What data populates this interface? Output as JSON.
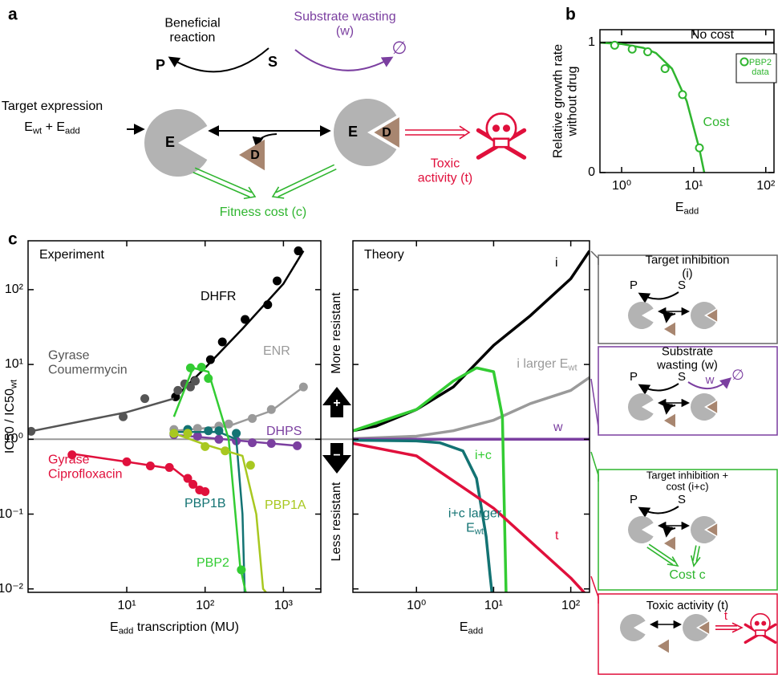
{
  "panel_labels": [
    "a",
    "b",
    "c"
  ],
  "diagram": {
    "beneficial_reaction": "Beneficial reaction",
    "product": "P",
    "substrate": "S",
    "substrate_wasting": "Substrate wasting (w)",
    "empty_set": "∅",
    "target_expression": "Target expression",
    "target_sum": [
      "E",
      "wt",
      " + E",
      "add"
    ],
    "enzyme_labels": [
      "E",
      "E"
    ],
    "drug_labels": [
      "D",
      "D"
    ],
    "toxic_activity": "Toxic activity (t)",
    "fitness_cost": "Fitness cost (c)"
  },
  "chart_data": [
    {
      "type": "line",
      "x_log": true,
      "xlim": [
        0.5,
        130
      ],
      "ylim": [
        0,
        1.1
      ],
      "xticks": [
        {
          "value": 1,
          "label": "10⁰"
        },
        {
          "value": 10,
          "label": "10¹"
        },
        {
          "value": 100,
          "label": "10²"
        }
      ],
      "yticks": [
        0,
        1
      ],
      "x_label": [
        "E",
        "add"
      ],
      "y_label": "Relative growth rate without drug",
      "legend": "upper right",
      "series": [
        {
          "name": "No cost",
          "color": "#000000",
          "x": [
            0.5,
            130
          ],
          "values": [
            1,
            1
          ]
        },
        {
          "name": "Cost",
          "color": "#2fb52f",
          "x": [
            0.5,
            1,
            2,
            3,
            5,
            8,
            12,
            14
          ],
          "values": [
            1,
            0.99,
            0.96,
            0.92,
            0.8,
            0.55,
            0.18,
            0
          ]
        },
        {
          "name": "PBP2 data",
          "color": "#2fb52f",
          "type": "scatter",
          "marker": "hollow",
          "x": [
            0.8,
            1.4,
            2.3,
            4,
            7,
            12
          ],
          "values": [
            0.98,
            0.95,
            0.93,
            0.8,
            0.6,
            0.19
          ]
        }
      ]
    },
    {
      "type": "scatter",
      "title": "Experiment",
      "x_log": true,
      "y_log": true,
      "xlim": [
        0.55,
        3000
      ],
      "ylim": [
        0.009,
        450
      ],
      "hline": 1,
      "xticks": [
        {
          "value": 10,
          "label": "10¹"
        },
        {
          "value": 100,
          "label": "10²"
        },
        {
          "value": 1000,
          "label": "10³"
        }
      ],
      "yticks": [
        {
          "value": 0.01,
          "label": "10⁻²"
        },
        {
          "value": 0.1,
          "label": "10⁻¹"
        },
        {
          "value": 1,
          "label": "10⁰"
        },
        {
          "value": 10,
          "label": "10¹"
        },
        {
          "value": 100,
          "label": "10²"
        }
      ],
      "x_label": [
        "E",
        "add",
        " transcription (MU)"
      ],
      "y_label": [
        "IC50 / IC50",
        "wt"
      ],
      "series": [
        {
          "name": "DHFR",
          "color": "#000000",
          "x": [
            42,
            74,
            117,
            166,
            324,
            630,
            830,
            1550
          ],
          "values": [
            3.7,
            6.1,
            11.6,
            20,
            40,
            63,
            131,
            330
          ],
          "fit_x": [
            40,
            100,
            300,
            1000,
            1800
          ],
          "fit_values": [
            3.5,
            9,
            30,
            120,
            330
          ]
        },
        {
          "name": "Gyrase Coumermycin",
          "color": "#555555",
          "x": [
            0.6,
            9,
            17,
            45,
            55,
            65,
            75
          ],
          "values": [
            1.28,
            2.0,
            3.5,
            4.5,
            5.5,
            5.0,
            6.0
          ],
          "fit_x": [
            0.6,
            10,
            40
          ],
          "fit_values": [
            1.28,
            2.3,
            3.5
          ]
        },
        {
          "name": "ENR",
          "color": "#9a9a9a",
          "x": [
            40,
            60,
            80,
            150,
            200,
            400,
            700,
            1800
          ],
          "values": [
            1.35,
            1.35,
            1.4,
            1.5,
            1.6,
            1.9,
            2.5,
            5
          ],
          "fit_x": [
            40,
            200,
            700,
            1800
          ],
          "fit_values": [
            1.3,
            1.5,
            2.4,
            5
          ]
        },
        {
          "name": "DHPS",
          "color": "#7b3fa0",
          "x": [
            40,
            80,
            150,
            250,
            400,
            700,
            1500
          ],
          "values": [
            1.15,
            1.1,
            1.0,
            0.95,
            0.9,
            0.88,
            0.82
          ],
          "fit_x": [
            40,
            300,
            1500
          ],
          "fit_values": [
            1.15,
            0.95,
            0.82
          ]
        },
        {
          "name": "Gyrase Ciprofloxacin",
          "color": "#e0103c",
          "x": [
            2,
            10,
            20,
            35,
            60,
            70,
            85,
            100
          ],
          "values": [
            0.62,
            0.5,
            0.44,
            0.42,
            0.3,
            0.25,
            0.21,
            0.2
          ],
          "fit_x": [
            2,
            10,
            40,
            100
          ],
          "fit_values": [
            0.64,
            0.5,
            0.4,
            0.19
          ]
        },
        {
          "name": "PBP1B",
          "color": "#137373",
          "x": [
            40,
            60,
            110,
            150,
            250
          ],
          "values": [
            1.2,
            1.35,
            1.3,
            1.3,
            1.2
          ],
          "fit_x": [
            40,
            150,
            250,
            300,
            320
          ],
          "fit_values": [
            1.25,
            1.25,
            1.0,
            0.1,
            0.009
          ]
        },
        {
          "name": "PBP2",
          "color": "#33cc33",
          "x": [
            65,
            90,
            110,
            290
          ],
          "values": [
            9,
            9.2,
            6.5,
            0.018
          ],
          "fit_x": [
            40,
            70,
            110,
            200,
            280,
            330
          ],
          "fit_values": [
            2,
            9,
            8,
            1,
            0.02,
            0.009
          ]
        },
        {
          "name": "PBP1A",
          "color": "#a8c820",
          "x": [
            40,
            60,
            100,
            180,
            380
          ],
          "values": [
            1.2,
            1.2,
            0.8,
            0.7,
            0.45
          ],
          "fit_x": [
            40,
            100,
            300,
            450,
            550,
            600
          ],
          "fit_values": [
            1.2,
            0.85,
            0.6,
            0.1,
            0.01,
            0.009
          ]
        }
      ]
    },
    {
      "type": "line",
      "title": "Theory",
      "x_log": true,
      "y_log": true,
      "xlim": [
        0.15,
        175
      ],
      "ylim": [
        0.009,
        450
      ],
      "xticks": [
        {
          "value": 1,
          "label": "10⁰"
        },
        {
          "value": 10,
          "label": "10¹"
        },
        {
          "value": 100,
          "label": "10²"
        }
      ],
      "yticks": [
        0.01,
        0.1,
        1,
        10,
        100
      ],
      "x_label": [
        "E",
        "add"
      ],
      "series": [
        {
          "name": "i",
          "color": "#000000",
          "x": [
            0.15,
            0.3,
            1,
            3,
            10,
            30,
            100,
            175
          ],
          "values": [
            1.3,
            1.5,
            2.5,
            5,
            18,
            45,
            140,
            330
          ]
        },
        {
          "name": [
            "i larger E",
            "wt"
          ],
          "color": "#9a9a9a",
          "x": [
            0.15,
            1,
            3,
            10,
            30,
            100,
            175
          ],
          "values": [
            1.02,
            1.1,
            1.3,
            1.8,
            3,
            4.5,
            6.7
          ]
        },
        {
          "name": "w",
          "color": "#7b3fa0",
          "x": [
            0.15,
            175
          ],
          "values": [
            1,
            1
          ]
        },
        {
          "name": "i+c",
          "color": "#33cc33",
          "x": [
            0.15,
            1,
            3,
            6,
            10,
            13,
            14,
            14.5
          ],
          "values": [
            1.3,
            2.5,
            6,
            9,
            8,
            2,
            0.05,
            0.009
          ]
        },
        {
          "name": [
            "i+c larger E",
            "wt"
          ],
          "color": "#137373",
          "x": [
            0.15,
            1,
            2,
            4,
            6,
            8,
            9,
            9.5
          ],
          "values": [
            0.97,
            0.95,
            0.9,
            0.7,
            0.3,
            0.05,
            0.015,
            0.009
          ]
        },
        {
          "name": "t",
          "color": "#e0103c",
          "x": [
            0.15,
            1,
            10,
            100,
            175
          ],
          "values": [
            0.88,
            0.6,
            0.12,
            0.014,
            0.0075
          ]
        }
      ]
    }
  ],
  "resistance_axis": {
    "up": "More resistant",
    "down": "Less resistant",
    "plus": "+",
    "minus": "−"
  },
  "models": [
    {
      "title": "Target inhibition (i)",
      "color": "#666666",
      "P": "P",
      "S": "S"
    },
    {
      "title": "Substrate wasting (w)",
      "color": "#7b3fa0",
      "P": "P",
      "S": "S",
      "w": "w",
      "empty": "∅"
    },
    {
      "title": "Target inhibition + cost (i+c)",
      "color": "#2fb52f",
      "P": "P",
      "S": "S",
      "cost": "Cost c"
    },
    {
      "title": "Toxic activity (t)",
      "color": "#e0103c",
      "t": "t"
    }
  ]
}
